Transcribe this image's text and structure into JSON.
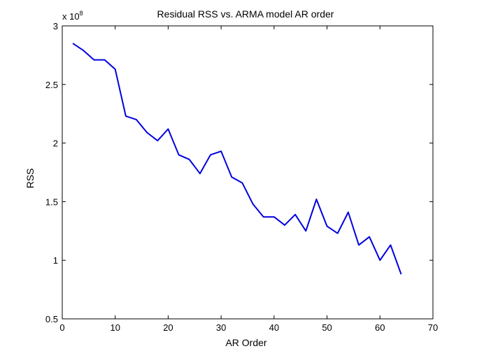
{
  "chart_data": {
    "type": "line",
    "title": "Residual RSS vs. ARMA model AR order",
    "xlabel": "AR Order",
    "ylabel": "RSS",
    "y_exponent_prefix": "x 10",
    "y_exponent": "8",
    "xlim": [
      0,
      70
    ],
    "ylim": [
      0.5,
      3
    ],
    "x_ticks": [
      0,
      10,
      20,
      30,
      40,
      50,
      60,
      70
    ],
    "x_tick_labels": [
      "0",
      "10",
      "20",
      "30",
      "40",
      "50",
      "60",
      "70"
    ],
    "y_ticks": [
      0.5,
      1,
      1.5,
      2,
      2.5,
      3
    ],
    "y_tick_labels": [
      "0.5",
      "1",
      "1.5",
      "2",
      "2.5",
      "3"
    ],
    "grid": false,
    "series": [
      {
        "color": "#0000e0",
        "x": [
          2,
          4,
          6,
          8,
          10,
          12,
          14,
          16,
          18,
          20,
          22,
          24,
          26,
          28,
          30,
          32,
          34,
          36,
          38,
          40,
          42,
          44,
          46,
          48,
          50,
          52,
          54,
          56,
          58,
          60,
          62,
          64
        ],
        "values": [
          2.85,
          2.79,
          2.71,
          2.71,
          2.63,
          2.23,
          2.2,
          2.09,
          2.02,
          2.12,
          1.9,
          1.86,
          1.74,
          1.9,
          1.93,
          1.71,
          1.66,
          1.48,
          1.37,
          1.37,
          1.3,
          1.39,
          1.25,
          1.52,
          1.29,
          1.23,
          1.41,
          1.13,
          1.2,
          1.0,
          1.13,
          0.88
        ]
      }
    ]
  }
}
